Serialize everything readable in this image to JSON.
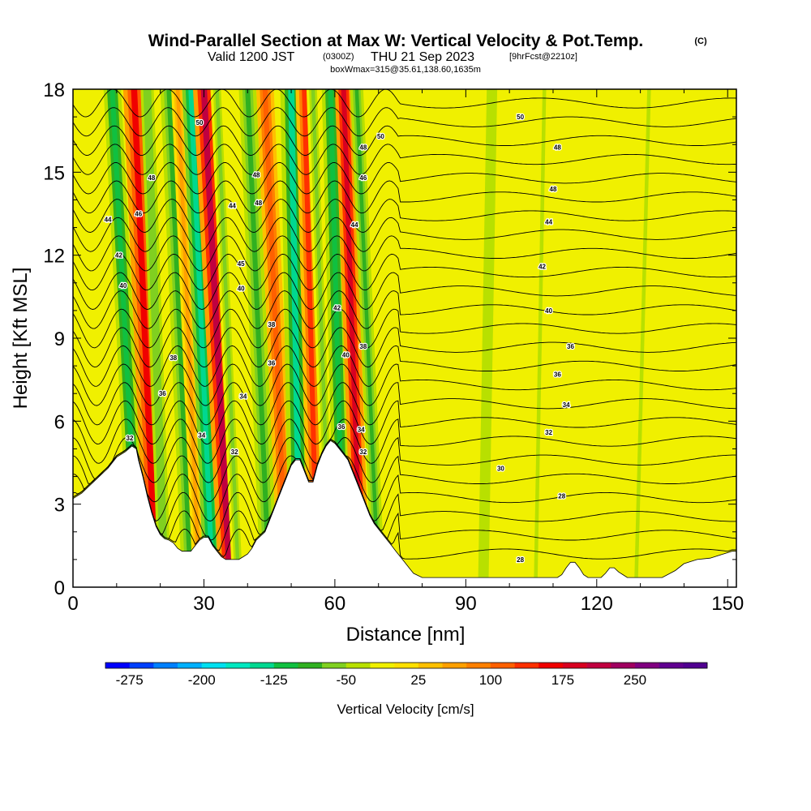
{
  "title": {
    "main": "Wind-Parallel Section at Max W: Vertical Velocity & Pot.Temp.",
    "copyright": "(C)",
    "line2_a": "Valid 1200 JST",
    "line2_b": "(0300Z)",
    "line2_c": "THU 21 Sep 2023",
    "line2_d": "[9hrFcst@2210z]",
    "line3": "boxWmax=315@35.61,138.60,1635m"
  },
  "chart_data": {
    "type": "heatmap",
    "xlabel": "Distance [nm]",
    "ylabel": "Height [Kft MSL]",
    "xlim": [
      0,
      152
    ],
    "ylim": [
      0,
      18
    ],
    "xticks": [
      0,
      30,
      60,
      90,
      120,
      150
    ],
    "yticks": [
      0,
      3,
      6,
      9,
      12,
      15,
      18
    ],
    "background_fill": "Vertical Velocity [cm/s]",
    "colorbar": {
      "title": "Vertical Velocity [cm/s]",
      "labels": [
        "-275",
        "-200",
        "-125",
        "-50",
        "25",
        "100",
        "175",
        "250"
      ],
      "min": -300,
      "max": 325,
      "step": 25,
      "colors": [
        "#0000ff",
        "#0040ff",
        "#0080ff",
        "#00b0ff",
        "#00e0f0",
        "#00e8c0",
        "#00d890",
        "#10c040",
        "#30b020",
        "#80d020",
        "#b8e000",
        "#f0f000",
        "#ffe000",
        "#ffc000",
        "#ffa000",
        "#ff8000",
        "#ff6000",
        "#ff3000",
        "#f00000",
        "#d80020",
        "#c00040",
        "#a00060",
        "#800080",
        "#600090",
        "#500090"
      ]
    },
    "terrain_profile": [
      [
        0,
        3.2
      ],
      [
        2,
        3.4
      ],
      [
        4,
        3.7
      ],
      [
        6,
        4.0
      ],
      [
        8,
        4.3
      ],
      [
        10,
        4.7
      ],
      [
        12,
        4.9
      ],
      [
        13.5,
        5.1
      ],
      [
        14.5,
        5.0
      ],
      [
        15,
        4.6
      ],
      [
        16,
        4.0
      ],
      [
        17,
        3.3
      ],
      [
        18,
        2.7
      ],
      [
        19,
        2.2
      ],
      [
        20,
        1.9
      ],
      [
        21,
        1.75
      ],
      [
        22,
        1.7
      ],
      [
        23,
        1.6
      ],
      [
        24,
        1.4
      ],
      [
        25,
        1.3
      ],
      [
        27,
        1.3
      ],
      [
        28,
        1.5
      ],
      [
        29,
        1.7
      ],
      [
        30,
        1.8
      ],
      [
        31,
        1.8
      ],
      [
        32,
        1.5
      ],
      [
        33,
        1.3
      ],
      [
        34,
        1.1
      ],
      [
        35,
        1.0
      ],
      [
        36,
        1.0
      ],
      [
        38,
        1.0
      ],
      [
        39,
        1.1
      ],
      [
        40,
        1.2
      ],
      [
        41,
        1.4
      ],
      [
        42,
        1.7
      ],
      [
        44,
        2.0
      ],
      [
        45,
        2.4
      ],
      [
        46,
        2.8
      ],
      [
        47,
        3.2
      ],
      [
        48,
        3.6
      ],
      [
        49,
        4.0
      ],
      [
        50,
        4.4
      ],
      [
        51,
        4.6
      ],
      [
        52,
        4.6
      ],
      [
        53,
        4.2
      ],
      [
        54,
        3.8
      ],
      [
        55,
        3.8
      ],
      [
        56,
        4.4
      ],
      [
        57,
        4.8
      ],
      [
        58,
        5.1
      ],
      [
        59,
        5.3
      ],
      [
        60,
        5.2
      ],
      [
        61,
        5.0
      ],
      [
        62,
        4.8
      ],
      [
        63,
        4.6
      ],
      [
        64,
        4.2
      ],
      [
        65,
        3.8
      ],
      [
        66,
        3.4
      ],
      [
        67,
        3.0
      ],
      [
        68,
        2.6
      ],
      [
        69,
        2.3
      ],
      [
        70,
        2.1
      ],
      [
        71,
        1.9
      ],
      [
        72,
        1.7
      ],
      [
        73,
        1.5
      ],
      [
        74,
        1.3
      ],
      [
        75,
        1.1
      ],
      [
        76,
        0.9
      ],
      [
        77,
        0.7
      ],
      [
        78,
        0.5
      ],
      [
        80,
        0.35
      ],
      [
        84,
        0.35
      ],
      [
        88,
        0.35
      ],
      [
        92,
        0.35
      ],
      [
        96,
        0.35
      ],
      [
        100,
        0.35
      ],
      [
        104,
        0.35
      ],
      [
        108,
        0.35
      ],
      [
        111,
        0.35
      ],
      [
        112,
        0.45
      ],
      [
        113,
        0.7
      ],
      [
        114,
        0.9
      ],
      [
        115,
        0.9
      ],
      [
        116,
        0.7
      ],
      [
        117,
        0.45
      ],
      [
        118,
        0.35
      ],
      [
        121,
        0.35
      ],
      [
        122,
        0.5
      ],
      [
        123,
        0.7
      ],
      [
        124,
        0.7
      ],
      [
        125,
        0.55
      ],
      [
        126,
        0.45
      ],
      [
        127,
        0.35
      ],
      [
        130,
        0.35
      ],
      [
        135,
        0.35
      ],
      [
        138,
        0.6
      ],
      [
        140,
        0.85
      ],
      [
        143,
        1.0
      ],
      [
        146,
        1.05
      ],
      [
        149,
        1.2
      ],
      [
        151,
        1.3
      ],
      [
        152,
        1.3
      ]
    ],
    "velocity_bands": [
      {
        "x_bottom": 15,
        "x_top": 9,
        "width": 4,
        "w": -125
      },
      {
        "x_bottom": 19,
        "x_top": 14,
        "width": 5,
        "w": 160
      },
      {
        "x_bottom": 21,
        "x_top": 17,
        "width": 3,
        "w": -75
      },
      {
        "x_bottom": 27,
        "x_top": 22,
        "width": 4,
        "w": -100
      },
      {
        "x_bottom": 29,
        "x_top": 24,
        "width": 3,
        "w": 60
      },
      {
        "x_bottom": 32,
        "x_top": 27,
        "width": 4,
        "w": -150
      },
      {
        "x_bottom": 36,
        "x_top": 30,
        "width": 5,
        "w": 200
      },
      {
        "x_bottom": 38,
        "x_top": 33,
        "width": 3,
        "w": -60
      },
      {
        "x_bottom": 45,
        "x_top": 40,
        "width": 4,
        "w": -90
      },
      {
        "x_bottom": 49,
        "x_top": 44,
        "width": 4,
        "w": 120
      },
      {
        "x_bottom": 52,
        "x_top": 50,
        "width": 5,
        "w": -130
      },
      {
        "x_bottom": 56,
        "x_top": 53,
        "width": 4,
        "w": 140
      },
      {
        "x_bottom": 59,
        "x_top": 55,
        "width": 3,
        "w": -60
      },
      {
        "x_bottom": 62,
        "x_top": 59,
        "width": 4,
        "w": -120
      },
      {
        "x_bottom": 66,
        "x_top": 62,
        "width": 4,
        "w": 190
      },
      {
        "x_bottom": 70,
        "x_top": 65,
        "width": 3,
        "w": -100
      },
      {
        "x_bottom": 94,
        "x_top": 96,
        "width": 4,
        "w": -40
      },
      {
        "x_bottom": 106,
        "x_top": 108,
        "width": 3,
        "w": -30
      },
      {
        "x_bottom": 129,
        "x_top": 132,
        "width": 3,
        "w": -30
      }
    ],
    "contour_levels": [
      28,
      29,
      30,
      31,
      32,
      33,
      34,
      35,
      36,
      37,
      38,
      39,
      40,
      41,
      42,
      43,
      44,
      45,
      46,
      47,
      48,
      49,
      50,
      51,
      52
    ],
    "contour_labels": [
      {
        "x": 8,
        "y": 13.3,
        "text": "44"
      },
      {
        "x": 10.5,
        "y": 12.0,
        "text": "42"
      },
      {
        "x": 11.5,
        "y": 10.9,
        "text": "40"
      },
      {
        "x": 13,
        "y": 5.4,
        "text": "32"
      },
      {
        "x": 15,
        "y": 13.5,
        "text": "46"
      },
      {
        "x": 18,
        "y": 14.8,
        "text": "48"
      },
      {
        "x": 20.5,
        "y": 7.0,
        "text": "36"
      },
      {
        "x": 23,
        "y": 8.3,
        "text": "38"
      },
      {
        "x": 29,
        "y": 16.8,
        "text": "50"
      },
      {
        "x": 29.5,
        "y": 5.5,
        "text": "34"
      },
      {
        "x": 36.5,
        "y": 13.8,
        "text": "44"
      },
      {
        "x": 37,
        "y": 4.9,
        "text": "32"
      },
      {
        "x": 38.5,
        "y": 11.7,
        "text": "45"
      },
      {
        "x": 38.5,
        "y": 10.8,
        "text": "40"
      },
      {
        "x": 39,
        "y": 6.9,
        "text": "34"
      },
      {
        "x": 42,
        "y": 14.9,
        "text": "48"
      },
      {
        "x": 42.5,
        "y": 13.9,
        "text": "48"
      },
      {
        "x": 45.5,
        "y": 9.5,
        "text": "38"
      },
      {
        "x": 45.5,
        "y": 8.1,
        "text": "36"
      },
      {
        "x": 60.5,
        "y": 10.1,
        "text": "42"
      },
      {
        "x": 61.5,
        "y": 5.8,
        "text": "36"
      },
      {
        "x": 62.5,
        "y": 8.4,
        "text": "40"
      },
      {
        "x": 64.5,
        "y": 13.1,
        "text": "44"
      },
      {
        "x": 66,
        "y": 5.7,
        "text": "34"
      },
      {
        "x": 66.5,
        "y": 8.7,
        "text": "38"
      },
      {
        "x": 66.5,
        "y": 4.9,
        "text": "32"
      },
      {
        "x": 66.5,
        "y": 14.8,
        "text": "46"
      },
      {
        "x": 66.5,
        "y": 15.9,
        "text": "48"
      },
      {
        "x": 70.5,
        "y": 16.3,
        "text": "50"
      },
      {
        "x": 98,
        "y": 4.3,
        "text": "30"
      },
      {
        "x": 102.5,
        "y": 1.0,
        "text": "28"
      },
      {
        "x": 102.5,
        "y": 17.0,
        "text": "50"
      },
      {
        "x": 107.5,
        "y": 11.6,
        "text": "42"
      },
      {
        "x": 109,
        "y": 10.0,
        "text": "40"
      },
      {
        "x": 109,
        "y": 5.6,
        "text": "32"
      },
      {
        "x": 109,
        "y": 13.2,
        "text": "44"
      },
      {
        "x": 110,
        "y": 14.4,
        "text": "48"
      },
      {
        "x": 111,
        "y": 15.9,
        "text": "48"
      },
      {
        "x": 111,
        "y": 7.7,
        "text": "36"
      },
      {
        "x": 112,
        "y": 3.3,
        "text": "28"
      },
      {
        "x": 113,
        "y": 6.6,
        "text": "34"
      },
      {
        "x": 114,
        "y": 8.7,
        "text": "36"
      }
    ]
  }
}
